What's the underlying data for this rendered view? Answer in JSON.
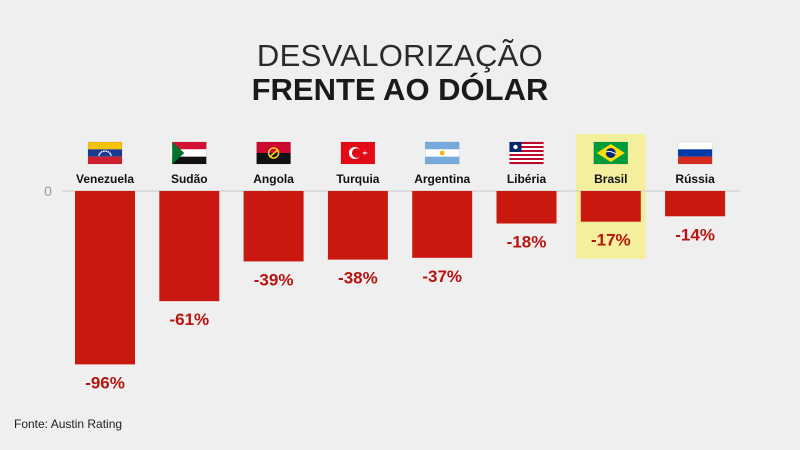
{
  "title_line1": "DESVALORIZAÇÃO",
  "title_line2": "FRENTE AO DÓLAR",
  "source": "Fonte: Austin Rating",
  "colors": {
    "bar": "#c8180f",
    "value_text": "#b51410",
    "highlight": "#f3ef9c",
    "axis": "#c8c8c8"
  },
  "chart_data": {
    "type": "bar",
    "title": "DESVALORIZAÇÃO FRENTE AO DÓLAR",
    "categories": [
      "Venezuela",
      "Sudão",
      "Angola",
      "Turquia",
      "Argentina",
      "Libéria",
      "Brasil",
      "Rússia"
    ],
    "values": [
      -96,
      -61,
      -39,
      -38,
      -37,
      -18,
      -17,
      -14
    ],
    "value_labels": [
      "-96%",
      "-61%",
      "-39%",
      "-38%",
      "-37%",
      "-18%",
      "-17%",
      "-14%"
    ],
    "highlighted_category": "Brasil",
    "flags": [
      "venezuela-flag",
      "sudan-flag",
      "angola-flag",
      "turkey-flag",
      "argentina-flag",
      "liberia-flag",
      "brazil-flag",
      "russia-flag"
    ],
    "zero_tick_label": "0",
    "ylim": [
      -100,
      0
    ],
    "grid": false
  }
}
